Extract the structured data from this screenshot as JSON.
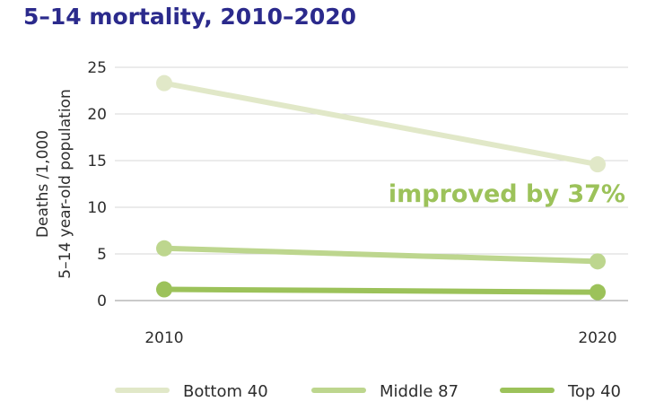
{
  "chart_data": {
    "type": "line",
    "title": "5–14 mortality, 2010–2020",
    "ylabel_line1": "Deaths /1,000",
    "ylabel_line2": "5–14 year-old population",
    "xlabel": "",
    "x": [
      "2010",
      "2020"
    ],
    "ylim": [
      0,
      25
    ],
    "yticks": [
      "0",
      "5",
      "10",
      "15",
      "20",
      "25"
    ],
    "grid": true,
    "legend_position": "bottom",
    "series": [
      {
        "name": "Bottom 40",
        "values": [
          23.3,
          14.6
        ],
        "color": "#e1e8c8"
      },
      {
        "name": "Middle 87",
        "values": [
          5.6,
          4.2
        ],
        "color": "#bdd68e"
      },
      {
        "name": "Top 40",
        "values": [
          1.2,
          0.9
        ],
        "color": "#9cc25a"
      }
    ],
    "annotation": {
      "text": "improved by 37%",
      "color": "#9cc25a"
    }
  }
}
